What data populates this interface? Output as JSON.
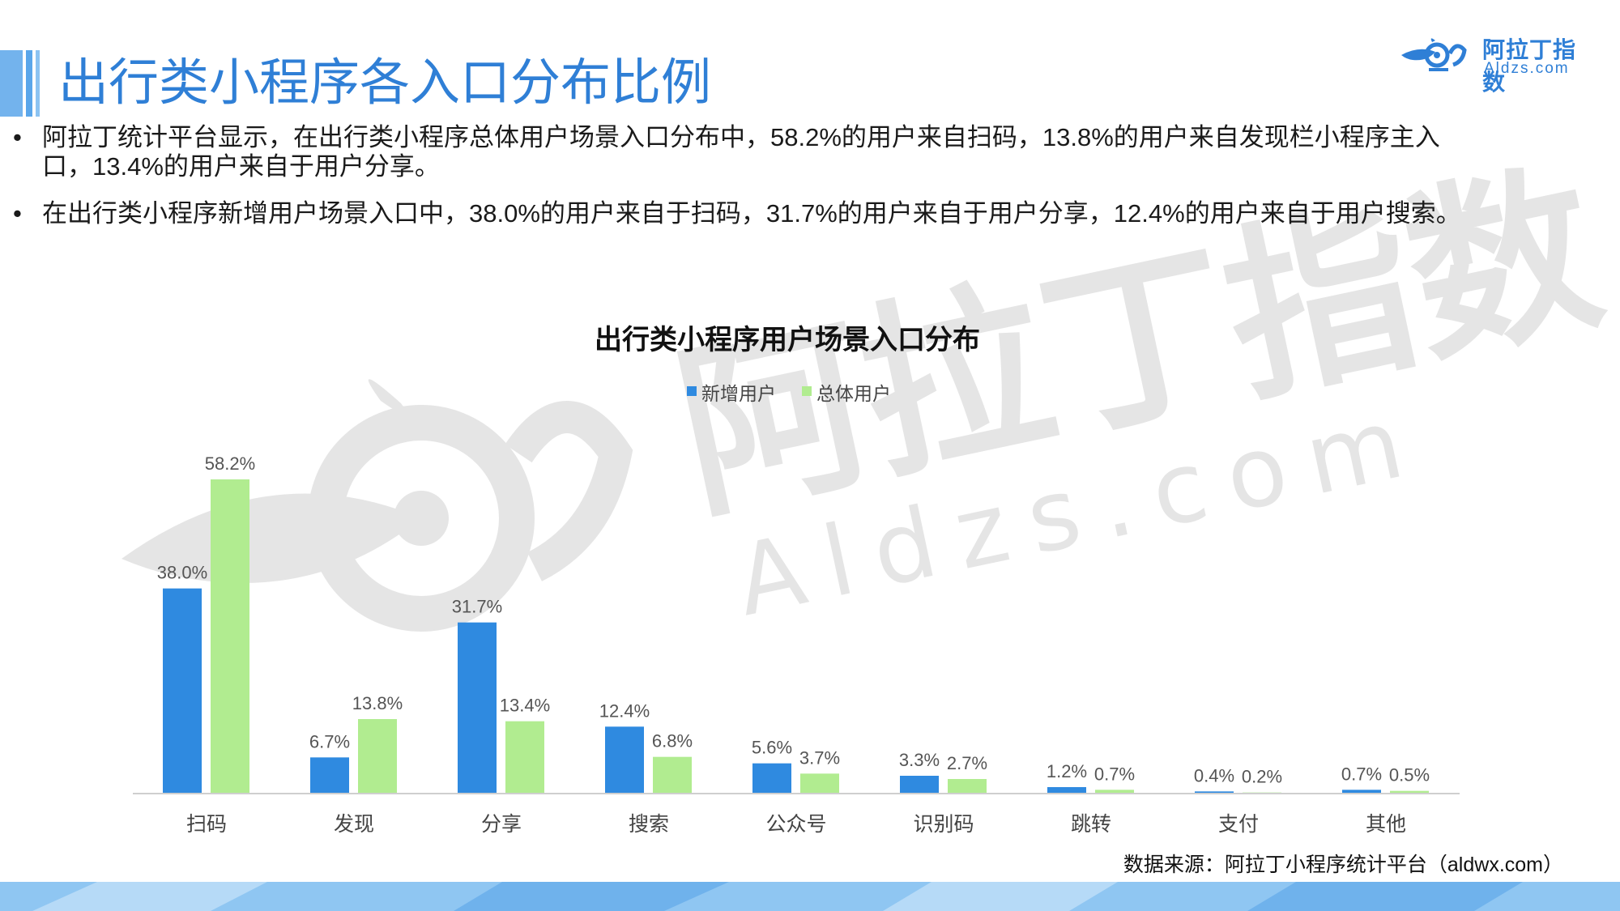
{
  "header": {
    "title": "出行类小程序各入口分布比例",
    "logo_name": "阿拉丁指数",
    "logo_url": "Aldzs.com"
  },
  "bullets": [
    {
      "marker": "•",
      "text": "阿拉丁统计平台显示，在出行类小程序总体用户场景入口分布中，58.2%的用户来自扫码，13.8%的用户来自发现栏小程序主入口，13.4%的用户来自于用户分享。"
    },
    {
      "marker": "•",
      "text": "在出行类小程序新增用户场景入口中，38.0%的用户来自于扫码，31.7%的用户来自于用户分享，12.4%的用户来自于用户搜索。"
    }
  ],
  "watermark": {
    "name": "阿拉丁指数",
    "url": "Aldzs.com"
  },
  "chart_data": {
    "type": "bar",
    "title": "出行类小程序用户场景入口分布",
    "categories": [
      "扫码",
      "发现",
      "分享",
      "搜索",
      "公众号",
      "识别码",
      "跳转",
      "支付",
      "其他"
    ],
    "series": [
      {
        "name": "新增用户",
        "color": "#2f8ae0",
        "values": [
          38.0,
          6.7,
          31.7,
          12.4,
          5.6,
          3.3,
          1.2,
          0.4,
          0.7
        ]
      },
      {
        "name": "总体用户",
        "color": "#b1ec90",
        "values": [
          58.2,
          13.8,
          13.4,
          6.8,
          3.7,
          2.7,
          0.7,
          0.2,
          0.5
        ]
      }
    ],
    "value_suffix": "%",
    "ylim": [
      0,
      60
    ],
    "legend": "top-center",
    "grid": false,
    "xlabel": "",
    "ylabel": ""
  },
  "source": "数据来源：阿拉丁小程序统计平台（aldwx.com）"
}
